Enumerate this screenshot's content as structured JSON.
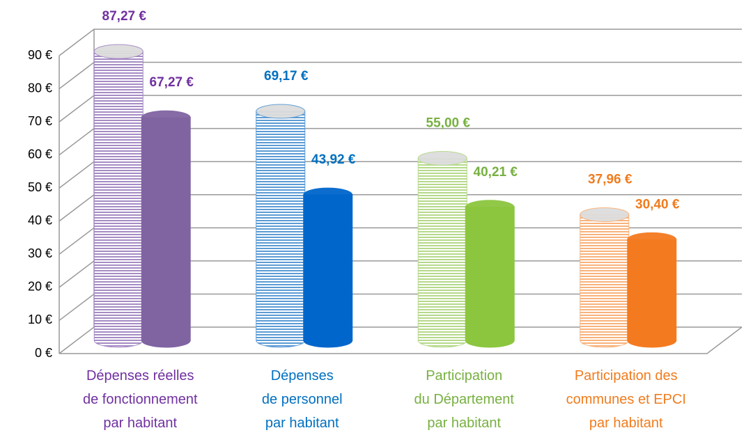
{
  "chart_data": {
    "type": "bar3d",
    "categories": [
      "Dépenses réelles\nde fonctionnement\npar habitant",
      "Dépenses\nde personnel\npar habitant",
      "Participation\ndu Département\npar habitant",
      "Participation des\ncommunes et EPCI\npar habitant"
    ],
    "category_colors": [
      "#7030a0",
      "#0070c0",
      "#77b041",
      "#f07c1e"
    ],
    "series": [
      {
        "pattern": "striped",
        "colors": [
          "#a58bc4",
          "#5b9bd5",
          "#b5d98a",
          "#f8b27a"
        ],
        "values": [
          87.27,
          69.17,
          55.0,
          37.96
        ],
        "value_labels": [
          "87,27 €",
          "69,17 €",
          "55,00 €",
          "37,96 €"
        ]
      },
      {
        "pattern": "solid",
        "colors": [
          "#8064a2",
          "#0066cc",
          "#8cc63f",
          "#f47a20"
        ],
        "values": [
          67.27,
          43.92,
          40.21,
          30.4
        ],
        "value_labels": [
          "67,27 €",
          "43,92 €",
          "40,21 €",
          "30,40 €"
        ]
      }
    ],
    "ylim": [
      0,
      90
    ],
    "yticks": [
      {
        "value": 0,
        "label": "0 €"
      },
      {
        "value": 10,
        "label": "10 €"
      },
      {
        "value": 20,
        "label": "20 €"
      },
      {
        "value": 30,
        "label": "30 €"
      },
      {
        "value": 40,
        "label": "40 €"
      },
      {
        "value": 50,
        "label": "50 €"
      },
      {
        "value": 60,
        "label": "60 €"
      },
      {
        "value": 70,
        "label": "70 €"
      },
      {
        "value": 80,
        "label": "80 €"
      },
      {
        "value": 90,
        "label": "90 €"
      }
    ],
    "grid": true
  }
}
